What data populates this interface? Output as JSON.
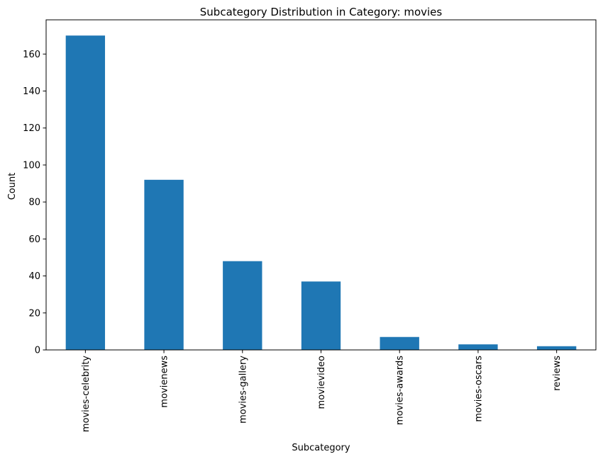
{
  "chart_data": {
    "type": "bar",
    "title": "Subcategory Distribution in Category: movies",
    "xlabel": "Subcategory",
    "ylabel": "Count",
    "categories": [
      "movies-celebrity",
      "movienews",
      "movies-gallery",
      "movievideo",
      "movies-awards",
      "movies-oscars",
      "reviews"
    ],
    "values": [
      170,
      92,
      48,
      37,
      7,
      3,
      2
    ],
    "ylim": [
      0,
      178.5
    ],
    "yticks": [
      0,
      20,
      40,
      60,
      80,
      100,
      120,
      140,
      160
    ],
    "grid": false,
    "bar_color": "#1f77b4"
  }
}
